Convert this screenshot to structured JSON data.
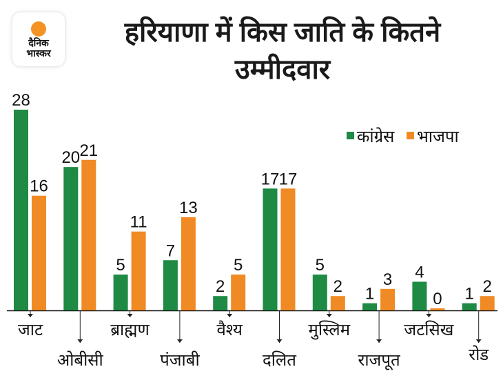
{
  "logo": {
    "line1": "दैनिक",
    "line2": "भास्कर"
  },
  "chart_data": {
    "type": "bar",
    "title": "हरियाणा में किस जाति के कितने उम्मीदवार",
    "categories": [
      "जाट",
      "ओबीसी",
      "ब्राह्मण",
      "पंजाबी",
      "वैश्य",
      "दलित",
      "मुस्लिम",
      "राजपूत",
      "जटसिख",
      "रोड"
    ],
    "series": [
      {
        "name": "कांग्रेस",
        "color": "#1e8a44",
        "values": [
          28,
          20,
          5,
          7,
          2,
          17,
          5,
          1,
          4,
          1
        ]
      },
      {
        "name": "भाजपा",
        "color": "#f08a24",
        "values": [
          16,
          21,
          11,
          13,
          5,
          17,
          2,
          3,
          0,
          2
        ]
      }
    ],
    "ylim": [
      0,
      28
    ],
    "legend": "top-right",
    "grid": false
  }
}
